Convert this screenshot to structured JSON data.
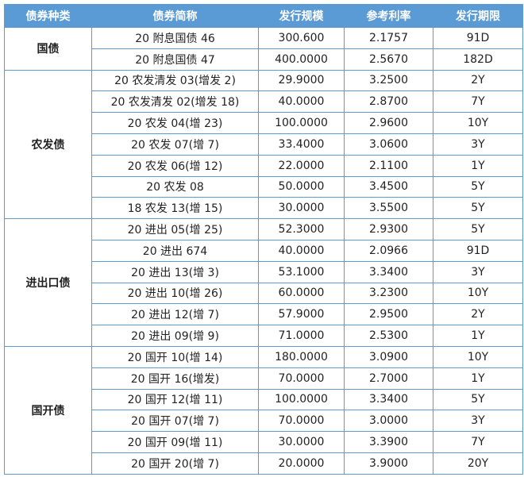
{
  "table": {
    "headers": [
      "债券种类",
      "债券简称",
      "发行规模",
      "参考利率",
      "发行期限"
    ],
    "groups": [
      {
        "category": "国债",
        "rows": [
          [
            "20 附息国债 46",
            "300.600",
            "2.1757",
            "91D"
          ],
          [
            "20 附息国债 47",
            "400.0000",
            "2.5670",
            "182D"
          ]
        ]
      },
      {
        "category": "农发债",
        "rows": [
          [
            "20 农发清发 03(增发 2)",
            "29.9000",
            "3.2500",
            "2Y"
          ],
          [
            "20 农发清发 02(增发 18)",
            "40.0000",
            "2.8700",
            "7Y"
          ],
          [
            "20 农发 04(增 23)",
            "100.0000",
            "2.9600",
            "10Y"
          ],
          [
            "20 农发 07(增 7)",
            "33.4000",
            "3.0600",
            "3Y"
          ],
          [
            "20 农发 06(增 12)",
            "22.0000",
            "2.1100",
            "1Y"
          ],
          [
            "20 农发 08",
            "50.0000",
            "3.4500",
            "5Y"
          ],
          [
            "18 农发 13(增 15)",
            "30.0000",
            "3.5500",
            "5Y"
          ]
        ]
      },
      {
        "category": "进出口债",
        "rows": [
          [
            "20 进出 05(增 25)",
            "52.3000",
            "2.9300",
            "5Y"
          ],
          [
            "20 进出 674",
            "40.0000",
            "2.0966",
            "91D"
          ],
          [
            "20 进出 13(增 3)",
            "53.1000",
            "3.3400",
            "3Y"
          ],
          [
            "20 进出 10(增 26)",
            "60.0000",
            "3.2300",
            "10Y"
          ],
          [
            "20 进出 12(增 7)",
            "57.9000",
            "2.9500",
            "2Y"
          ],
          [
            "20 进出 09(增 9)",
            "71.0000",
            "2.5300",
            "1Y"
          ]
        ]
      },
      {
        "category": "国开债",
        "rows": [
          [
            "20 国开 10(增 14)",
            "180.0000",
            "3.0900",
            "10Y"
          ],
          [
            "20 国开 16(增发)",
            "70.0000",
            "2.7000",
            "1Y"
          ],
          [
            "20 国开 12(增 11)",
            "100.0000",
            "3.3400",
            "5Y"
          ],
          [
            "20 国开 07(增 7)",
            "70.0000",
            "3.0000",
            "3Y"
          ],
          [
            "20 国开 09(增 11)",
            "30.0000",
            "3.3900",
            "7Y"
          ],
          [
            "20 国开 20(增 7)",
            "20.0000",
            "3.9000",
            "20Y"
          ]
        ]
      }
    ]
  }
}
